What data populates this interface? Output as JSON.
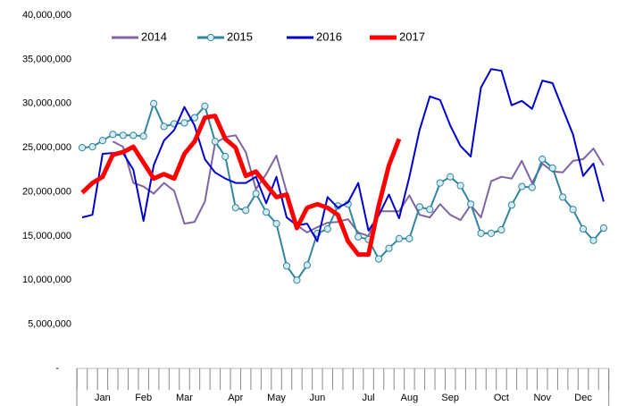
{
  "chart_data": {
    "type": "line",
    "categories": [
      null,
      null,
      "Jan",
      null,
      null,
      null,
      "Feb",
      null,
      null,
      null,
      "Mar",
      null,
      null,
      null,
      null,
      "Apr",
      null,
      null,
      null,
      "May",
      null,
      null,
      null,
      "Jun",
      null,
      null,
      null,
      null,
      "Jul",
      null,
      null,
      null,
      "Aug",
      null,
      null,
      null,
      "Sep",
      null,
      null,
      null,
      null,
      "Oct",
      null,
      null,
      null,
      "Nov",
      null,
      null,
      null,
      "Dec",
      null,
      null
    ],
    "series": [
      {
        "name": "2014",
        "color": "#8064a2",
        "values": [
          null,
          null,
          null,
          25700000,
          25100000,
          21000000,
          20600000,
          19800000,
          21000000,
          20100000,
          16400000,
          16600000,
          18900000,
          25500000,
          26200000,
          26400000,
          24500000,
          20300000,
          22000000,
          24100000,
          20000000,
          16200000,
          15400000,
          16000000,
          16500000,
          16600000,
          16900000,
          15400000,
          15000000,
          17800000,
          17800000,
          17800000,
          19600000,
          17400000,
          17100000,
          18600000,
          17400000,
          16800000,
          18500000,
          17100000,
          21200000,
          21700000,
          21500000,
          23500000,
          21000000,
          23200000,
          22300000,
          22200000,
          23500000,
          23700000,
          24900000,
          23000000
        ]
      },
      {
        "name": "2015",
        "color": "#31859c",
        "markers": true,
        "values": [
          25000000,
          25100000,
          25800000,
          26500000,
          26400000,
          26400000,
          26300000,
          30000000,
          27400000,
          27700000,
          27800000,
          28400000,
          29700000,
          25700000,
          24000000,
          18200000,
          17900000,
          19800000,
          17700000,
          16400000,
          11600000,
          10000000,
          11700000,
          15300000,
          15800000,
          18400000,
          18600000,
          14900000,
          14600000,
          12400000,
          13600000,
          14700000,
          14700000,
          18300000,
          18000000,
          21000000,
          21700000,
          20700000,
          18600000,
          15300000,
          15300000,
          15700000,
          18500000,
          20600000,
          20500000,
          23700000,
          22700000,
          19400000,
          18000000,
          15800000,
          14500000,
          15900000
        ]
      },
      {
        "name": "2016",
        "color": "#0000cc",
        "values": [
          17100000,
          17400000,
          24300000,
          24400000,
          24400000,
          22500000,
          16700000,
          23000000,
          25800000,
          27000000,
          29600000,
          27500000,
          23700000,
          22200000,
          21500000,
          21000000,
          21000000,
          21700000,
          18700000,
          21700000,
          17100000,
          16200000,
          16400000,
          14400000,
          19400000,
          18200000,
          18800000,
          21000000,
          15600000,
          17300000,
          19700000,
          17000000,
          21700000,
          27000000,
          30800000,
          30400000,
          27500000,
          25200000,
          24000000,
          31800000,
          33900000,
          33700000,
          29800000,
          30300000,
          29400000,
          32600000,
          32300000,
          29400000,
          26500000,
          21800000,
          23200000,
          18900000
        ]
      },
      {
        "name": "2017",
        "color": "#ff0000",
        "width": 5,
        "values": [
          19900000,
          21000000,
          21700000,
          24200000,
          24500000,
          25100000,
          23300000,
          21500000,
          22000000,
          21500000,
          24300000,
          25700000,
          28400000,
          28600000,
          26000000,
          25000000,
          21800000,
          22300000,
          20800000,
          19400000,
          19700000,
          15900000,
          18200000,
          18600000,
          18200000,
          17400000,
          14400000,
          12900000,
          12900000,
          18400000,
          23000000,
          26000000,
          null,
          null,
          null,
          null,
          null,
          null,
          null,
          null,
          null,
          null,
          null,
          null,
          null,
          null,
          null,
          null,
          null,
          null,
          null,
          null
        ]
      }
    ],
    "ylim": [
      0,
      40000000
    ],
    "yticks": [
      {
        "value": 0,
        "label": "-"
      },
      {
        "value": 5000000,
        "label": "5,000,000"
      },
      {
        "value": 10000000,
        "label": "10,000,000"
      },
      {
        "value": 15000000,
        "label": "15,000,000"
      },
      {
        "value": 20000000,
        "label": "20,000,000"
      },
      {
        "value": 25000000,
        "label": "25,000,000"
      },
      {
        "value": 30000000,
        "label": "30,000,000"
      },
      {
        "value": 35000000,
        "label": "35,000,000"
      },
      {
        "value": 40000000,
        "label": "40,000,000"
      }
    ],
    "grid": false,
    "legend": "top"
  }
}
